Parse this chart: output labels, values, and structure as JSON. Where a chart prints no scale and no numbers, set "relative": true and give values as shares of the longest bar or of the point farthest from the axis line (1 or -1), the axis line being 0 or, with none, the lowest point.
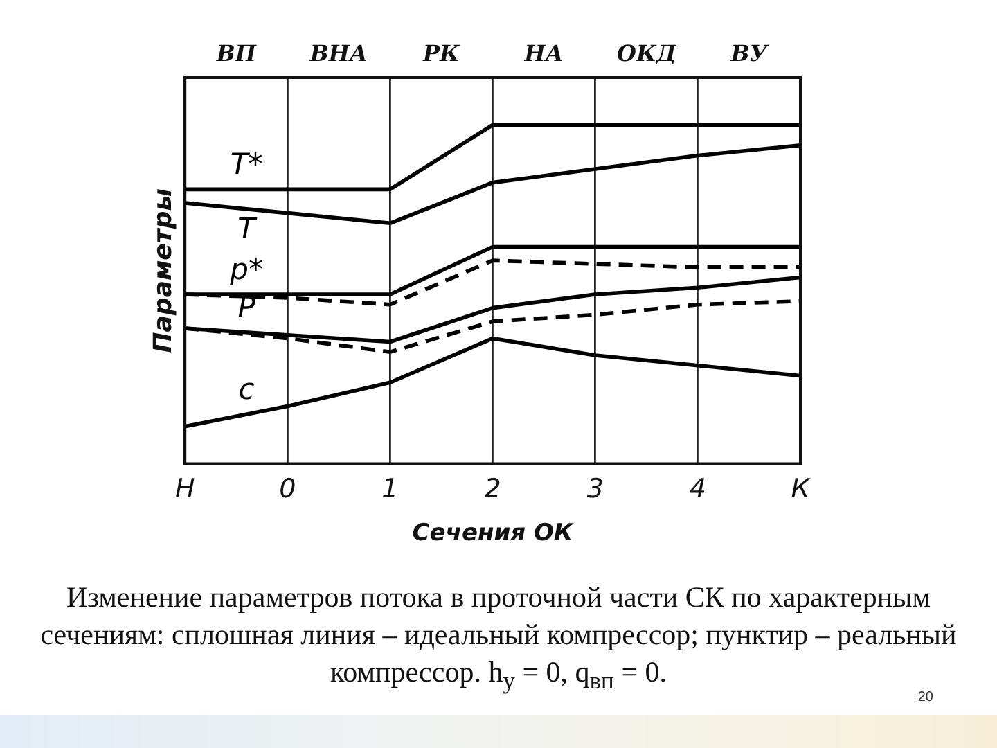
{
  "chart_data": {
    "type": "line",
    "ylabel": "Параметры",
    "xlabel": "Сечения ОК",
    "categories": [
      "Н",
      "0",
      "1",
      "2",
      "3",
      "4",
      "К"
    ],
    "relative": true,
    "grid": "x",
    "legend": false,
    "marker": "none",
    "series": [
      {
        "name": "T*",
        "color": "#000000",
        "line_style": "solid",
        "values": [
          0.81,
          0.81,
          0.81,
          1,
          1,
          1,
          1
        ]
      },
      {
        "name": "T",
        "color": "#000000",
        "line_style": "solid",
        "values": [
          0.77,
          0.74,
          0.71,
          0.83,
          0.87,
          0.91,
          0.94
        ]
      },
      {
        "name": "p*",
        "color": "#000000",
        "line_style": "solid",
        "values": [
          0.5,
          0.5,
          0.5,
          0.64,
          0.64,
          0.64,
          0.64
        ]
      },
      {
        "color": "#000000",
        "line_style": "dashed",
        "values": [
          0.5,
          0.49,
          0.47,
          0.6,
          0.59,
          0.58,
          0.58
        ]
      },
      {
        "name": "P",
        "color": "#000000",
        "line_style": "solid",
        "values": [
          0.4,
          0.38,
          0.36,
          0.46,
          0.5,
          0.52,
          0.55
        ]
      },
      {
        "color": "#000000",
        "line_style": "dashed",
        "values": [
          0.4,
          0.37,
          0.33,
          0.42,
          0.44,
          0.47,
          0.48
        ]
      },
      {
        "name": "c",
        "color": "#000000",
        "line_style": "solid",
        "values": [
          0.11,
          0.17,
          0.24,
          0.37,
          0.32,
          0.29,
          0.26
        ]
      }
    ],
    "annotations": [
      "ВП",
      "ВНА",
      "РК",
      "НА",
      "ОКД",
      "ВУ",
      "Изменение параметров потока в проточной части СК по характерным сечениям: сплошная линия – идеальный компрессор;  пунктир – реальный компрессор. h$_{у}$ = 0, q$_{вп}$ = 0.",
      "20"
    ]
  }
}
